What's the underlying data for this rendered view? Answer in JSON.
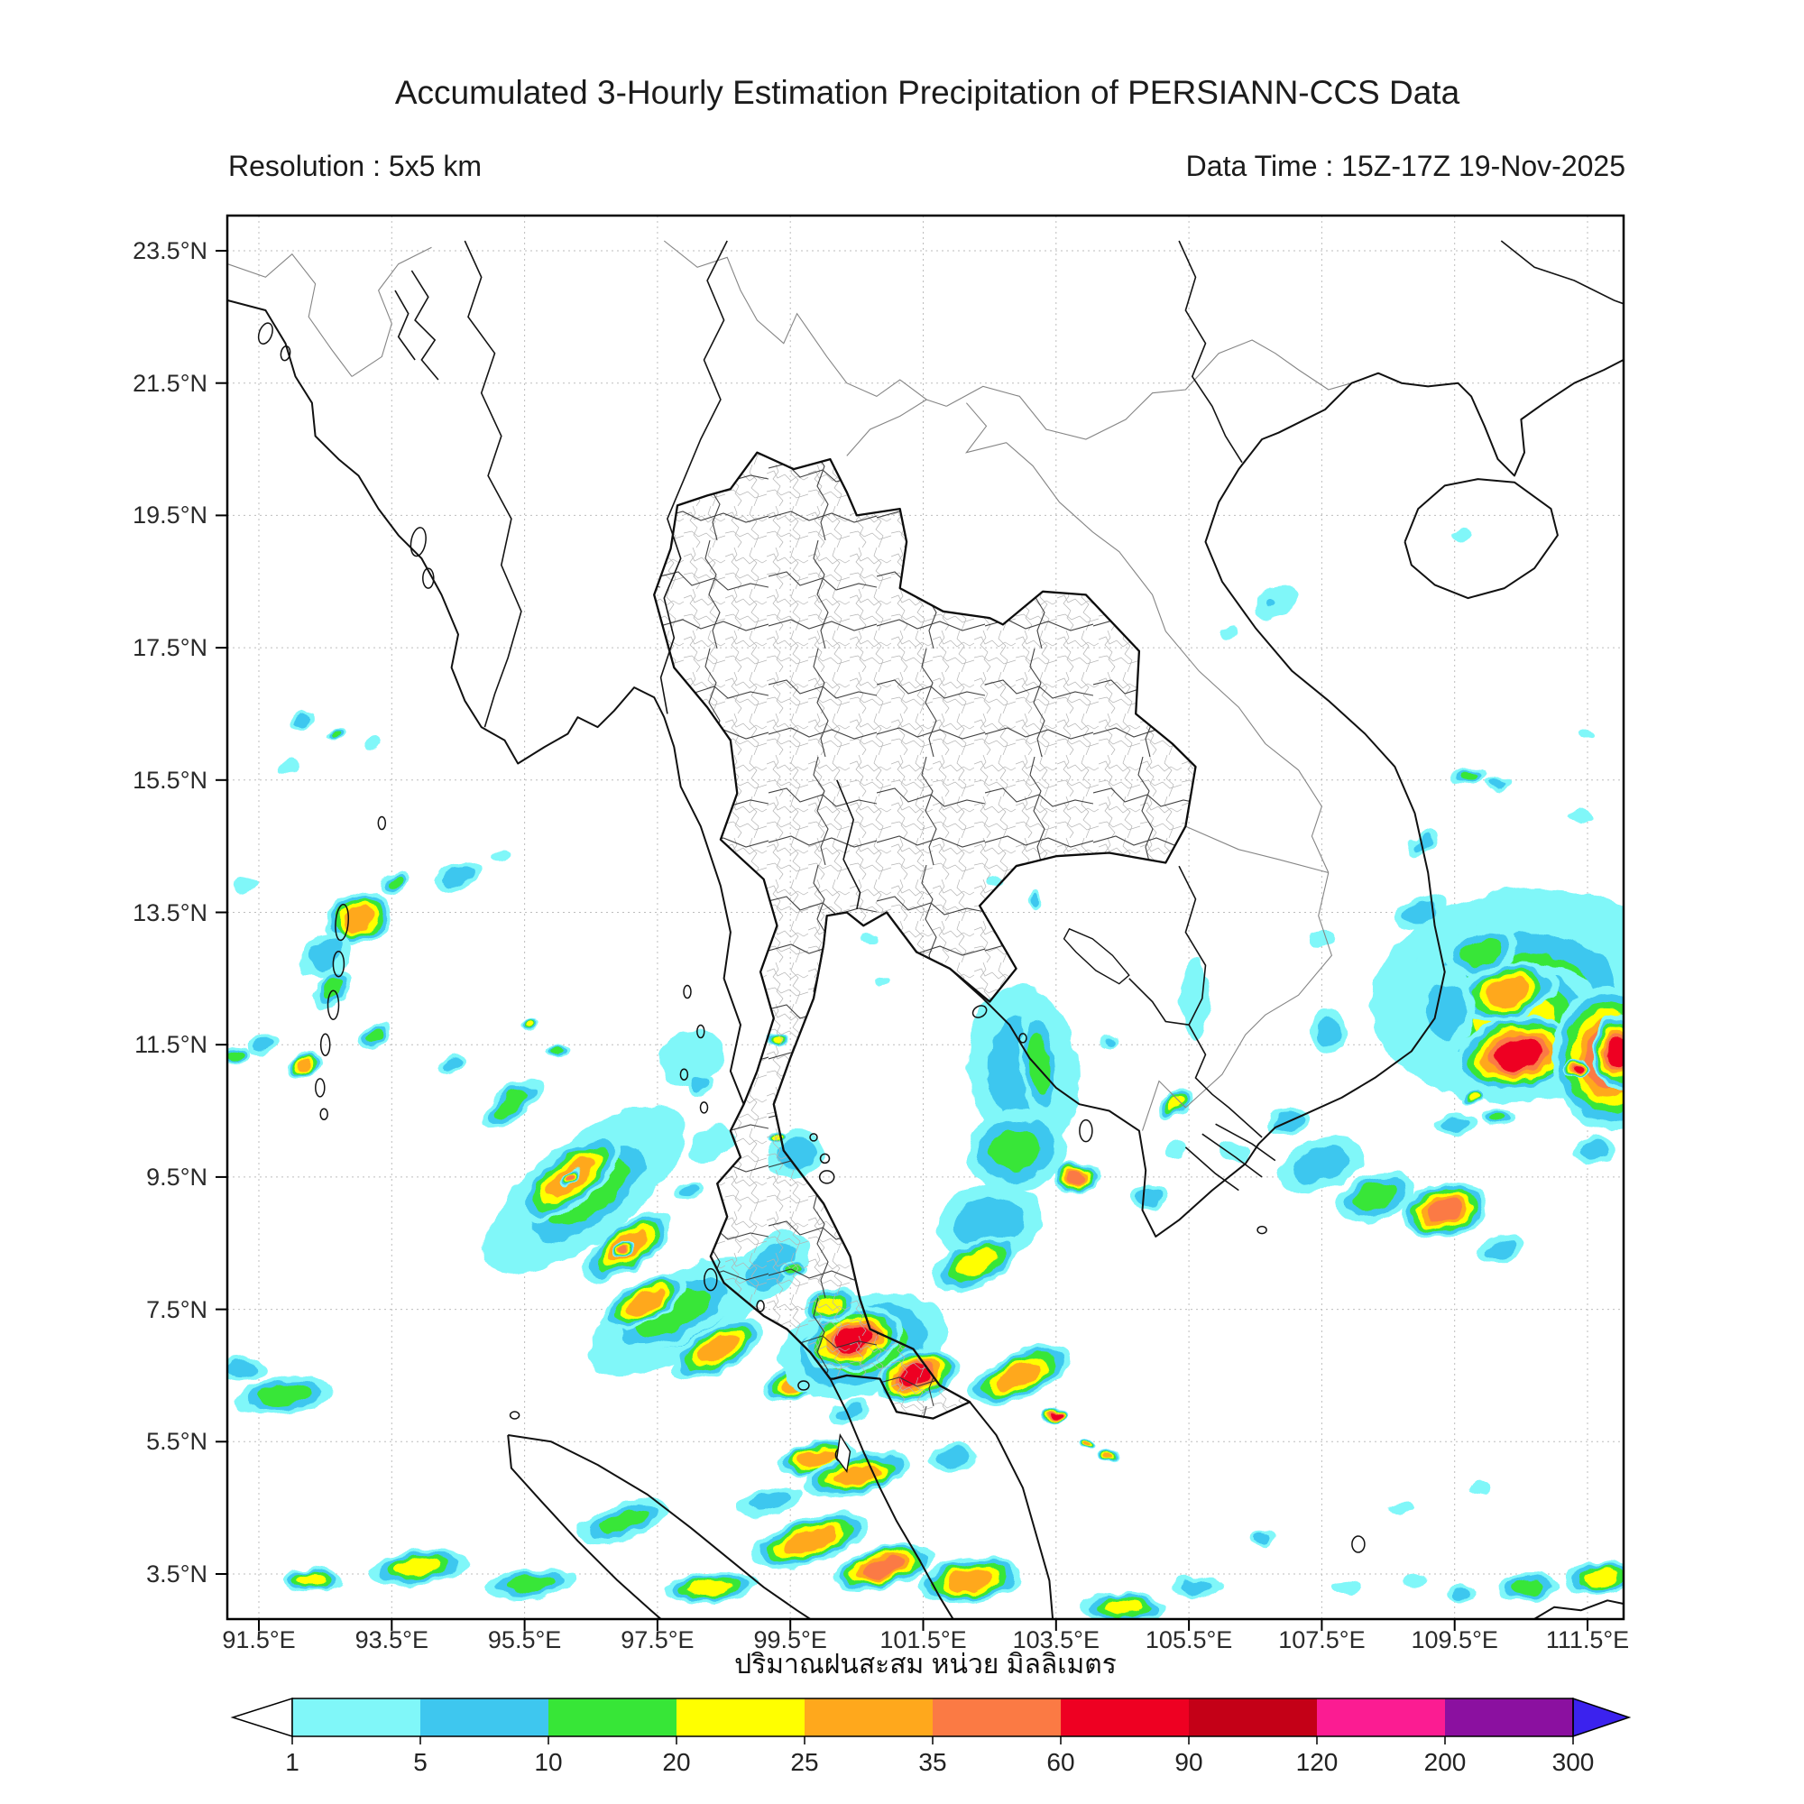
{
  "header": {
    "title": "Accumulated 3-Hourly Estimation Precipitation of PERSIANN-CCS Data",
    "resolution_label": "Resolution : 5x5 km",
    "data_time_label": "Data Time : 15Z-17Z 19-Nov-2025"
  },
  "caption_thai": "ปริมาณฝนสะสม หน่วย มิลลิเมตร",
  "axes": {
    "x_labels": [
      "91.5°E",
      "93.5°E",
      "95.5°E",
      "97.5°E",
      "99.5°E",
      "101.5°E",
      "103.5°E",
      "105.5°E",
      "107.5°E",
      "109.5°E",
      "111.5°E"
    ],
    "y_labels": [
      "23.5°N",
      "21.5°N",
      "19.5°N",
      "17.5°N",
      "15.5°N",
      "13.5°N",
      "11.5°N",
      "9.5°N",
      "7.5°N",
      "5.5°N",
      "3.5°N"
    ]
  },
  "colorbar": {
    "tick_values": [
      "1",
      "5",
      "10",
      "20",
      "25",
      "35",
      "60",
      "90",
      "120",
      "200",
      "300"
    ],
    "segment_colors": [
      "#80F7F9",
      "#3EC7EF",
      "#37E637",
      "#FFFF00",
      "#FFA81C",
      "#FB7A44",
      "#EE0022",
      "#C40017",
      "#FB1C92",
      "#8B10A0"
    ],
    "underflow_color": "#FFFFFF",
    "overflow_color": "#3B22EE"
  },
  "chart_data": {
    "type": "heatmap",
    "title": "Accumulated 3-Hourly Estimation Precipitation of PERSIANN-CCS Data",
    "units": "mm",
    "resolution": "5x5 km",
    "data_time": "15Z-17Z 19-Nov-2025",
    "lon_range": [
      91.03,
      112.04
    ],
    "lat_range": [
      2.82,
      24.03
    ],
    "x_tick_lons": [
      91.5,
      93.5,
      95.5,
      97.5,
      99.5,
      101.5,
      103.5,
      105.5,
      107.5,
      109.5,
      111.5
    ],
    "y_tick_lats": [
      23.5,
      21.5,
      19.5,
      17.5,
      15.5,
      13.5,
      11.5,
      9.5,
      7.5,
      5.5,
      3.5
    ],
    "precip_levels_mm": [
      1,
      5,
      10,
      20,
      25,
      35,
      60,
      90,
      120,
      200,
      300
    ],
    "level_colors": [
      "#80F7F9",
      "#3EC7EF",
      "#37E637",
      "#FFFF00",
      "#FFA81C",
      "#FB7A44",
      "#EE0022"
    ],
    "blobs": [
      [
        92.15,
        16.4,
        14,
        9,
        -20,
        2
      ],
      [
        92.65,
        16.2,
        10,
        7,
        -20,
        3
      ],
      [
        93.25,
        16.05,
        9,
        6,
        0,
        1
      ],
      [
        91.95,
        15.7,
        13,
        8,
        -10,
        1
      ],
      [
        91.3,
        13.9,
        13,
        8,
        0,
        1
      ],
      [
        94.5,
        14.05,
        28,
        14,
        -25,
        2
      ],
      [
        95.15,
        14.35,
        12,
        8,
        -20,
        1
      ],
      [
        93.55,
        13.95,
        17,
        11,
        -30,
        3
      ],
      [
        93.0,
        13.4,
        38,
        28,
        -25,
        5
      ],
      [
        92.5,
        12.85,
        30,
        22,
        -30,
        2
      ],
      [
        92.6,
        12.35,
        26,
        17,
        -40,
        3
      ],
      [
        93.25,
        11.65,
        20,
        13,
        -35,
        3
      ],
      [
        92.2,
        11.2,
        22,
        13,
        -30,
        5
      ],
      [
        91.6,
        11.5,
        18,
        12,
        -20,
        2
      ],
      [
        91.15,
        11.35,
        18,
        11,
        0,
        3
      ],
      [
        94.4,
        11.2,
        15,
        9,
        -30,
        2
      ],
      [
        95.6,
        11.8,
        10,
        6,
        0,
        4
      ],
      [
        96.0,
        11.4,
        12,
        7,
        0,
        3
      ],
      [
        96.4,
        9.3,
        135,
        55,
        -38,
        2
      ],
      [
        96.45,
        9.25,
        100,
        42,
        -38,
        3
      ],
      [
        96.2,
        9.5,
        70,
        30,
        -38,
        5
      ],
      [
        96.2,
        9.5,
        16,
        8,
        -38,
        6
      ],
      [
        97.05,
        8.45,
        58,
        25,
        -35,
        5
      ],
      [
        97.0,
        8.4,
        13,
        7,
        -35,
        6
      ],
      [
        95.3,
        10.6,
        40,
        18,
        -38,
        3
      ],
      [
        98.0,
        11.3,
        36,
        30,
        -20,
        1
      ],
      [
        98.15,
        10.9,
        15,
        12,
        0,
        2
      ],
      [
        98.3,
        10.0,
        28,
        18,
        -30,
        1
      ],
      [
        98.0,
        9.3,
        15,
        9,
        -20,
        2
      ],
      [
        97.8,
        7.4,
        110,
        46,
        -28,
        2
      ],
      [
        97.75,
        7.45,
        85,
        34,
        -28,
        3
      ],
      [
        97.3,
        7.6,
        52,
        22,
        -28,
        5
      ],
      [
        98.4,
        6.9,
        56,
        24,
        -28,
        5
      ],
      [
        99.6,
        6.4,
        40,
        18,
        -20,
        5
      ],
      [
        91.9,
        6.2,
        55,
        20,
        -8,
        3
      ],
      [
        91.25,
        6.6,
        28,
        13,
        0,
        2
      ],
      [
        100.6,
        6.95,
        95,
        55,
        -15,
        3
      ],
      [
        100.45,
        7.05,
        55,
        34,
        -15,
        7
      ],
      [
        101.4,
        6.5,
        46,
        28,
        -20,
        7
      ],
      [
        100.1,
        7.55,
        32,
        18,
        -10,
        4
      ],
      [
        99.2,
        8.15,
        50,
        30,
        -40,
        2
      ],
      [
        99.55,
        8.1,
        14,
        9,
        0,
        3
      ],
      [
        99.6,
        9.85,
        32,
        26,
        -10,
        2
      ],
      [
        99.3,
        10.1,
        10,
        6,
        0,
        4
      ],
      [
        99.3,
        11.6,
        12,
        6,
        0,
        4
      ],
      [
        102.95,
        6.5,
        60,
        25,
        -22,
        5
      ],
      [
        103.5,
        5.9,
        14,
        8,
        -20,
        7
      ],
      [
        103.95,
        5.45,
        10,
        6,
        0,
        5
      ],
      [
        104.3,
        5.3,
        12,
        6,
        0,
        5
      ],
      [
        101.95,
        5.25,
        28,
        13,
        -10,
        2
      ],
      [
        100.4,
        5.95,
        24,
        13,
        -15,
        2
      ],
      [
        99.9,
        5.25,
        45,
        18,
        -10,
        5
      ],
      [
        100.5,
        5.0,
        60,
        22,
        -12,
        5
      ],
      [
        99.2,
        4.6,
        38,
        15,
        -15,
        2
      ],
      [
        93.9,
        3.6,
        55,
        19,
        -8,
        4
      ],
      [
        92.3,
        3.4,
        34,
        13,
        0,
        4
      ],
      [
        95.6,
        3.35,
        50,
        17,
        -5,
        3
      ],
      [
        97.0,
        4.3,
        52,
        20,
        -20,
        3
      ],
      [
        98.3,
        3.3,
        52,
        17,
        -5,
        4
      ],
      [
        99.8,
        4.0,
        68,
        25,
        -18,
        5
      ],
      [
        100.9,
        3.6,
        58,
        23,
        -15,
        6
      ],
      [
        102.2,
        3.4,
        58,
        25,
        -8,
        5
      ],
      [
        104.5,
        3.0,
        45,
        17,
        0,
        4
      ],
      [
        105.6,
        3.3,
        28,
        13,
        0,
        2
      ],
      [
        106.6,
        4.05,
        13,
        9,
        0,
        2
      ],
      [
        103.0,
        11.1,
        60,
        95,
        -5,
        2
      ],
      [
        103.25,
        11.2,
        22,
        65,
        -5,
        3
      ],
      [
        102.9,
        9.9,
        55,
        45,
        -10,
        3
      ],
      [
        102.5,
        8.8,
        58,
        45,
        -15,
        2
      ],
      [
        102.3,
        8.2,
        52,
        24,
        -25,
        4
      ],
      [
        103.8,
        9.5,
        25,
        18,
        0,
        6
      ],
      [
        104.9,
        9.2,
        20,
        13,
        0,
        2
      ],
      [
        105.3,
        9.9,
        13,
        9,
        0,
        1
      ],
      [
        100.7,
        13.1,
        8,
        6,
        0,
        1
      ],
      [
        100.9,
        12.45,
        8,
        6,
        0,
        1
      ],
      [
        103.2,
        13.7,
        8,
        10,
        0,
        2
      ],
      [
        102.55,
        13.95,
        10,
        7,
        0,
        1
      ],
      [
        104.3,
        11.55,
        8,
        6,
        0,
        2
      ],
      [
        105.6,
        12.2,
        15,
        45,
        0,
        1
      ],
      [
        105.3,
        10.6,
        22,
        14,
        -30,
        4
      ],
      [
        107.6,
        11.7,
        20,
        25,
        0,
        2
      ],
      [
        107.5,
        13.1,
        14,
        9,
        0,
        1
      ],
      [
        107.5,
        9.7,
        48,
        28,
        -20,
        2
      ],
      [
        108.3,
        9.2,
        44,
        26,
        -15,
        3
      ],
      [
        109.35,
        9.0,
        48,
        30,
        -10,
        6
      ],
      [
        110.2,
        8.4,
        28,
        16,
        -10,
        2
      ],
      [
        107.0,
        10.35,
        24,
        14,
        -15,
        2
      ],
      [
        106.2,
        9.9,
        18,
        11,
        0,
        1
      ],
      [
        111.6,
        9.9,
        26,
        15,
        0,
        2
      ],
      [
        107.9,
        3.3,
        15,
        8,
        0,
        1
      ],
      [
        108.9,
        3.4,
        14,
        8,
        0,
        1
      ],
      [
        109.6,
        3.2,
        17,
        9,
        0,
        2
      ],
      [
        110.6,
        3.3,
        34,
        16,
        -5,
        3
      ],
      [
        111.7,
        3.45,
        40,
        18,
        -5,
        4
      ],
      [
        108.7,
        4.5,
        12,
        7,
        0,
        1
      ],
      [
        109.9,
        4.8,
        12,
        7,
        0,
        1
      ],
      [
        110.55,
        12.25,
        170,
        118,
        -8,
        1
      ],
      [
        110.5,
        12.2,
        140,
        92,
        -8,
        3
      ],
      [
        110.4,
        11.9,
        95,
        60,
        -10,
        4
      ],
      [
        110.45,
        11.35,
        68,
        42,
        -10,
        7
      ],
      [
        110.3,
        12.3,
        55,
        32,
        -15,
        5
      ],
      [
        111.8,
        11.3,
        62,
        80,
        0,
        6
      ],
      [
        111.95,
        11.4,
        26,
        42,
        0,
        7
      ],
      [
        111.35,
        11.15,
        15,
        10,
        0,
        7
      ],
      [
        109.9,
        12.9,
        42,
        26,
        -20,
        3
      ],
      [
        109.35,
        12.0,
        33,
        48,
        0,
        2
      ],
      [
        109.0,
        13.5,
        30,
        17,
        -20,
        2
      ],
      [
        109.8,
        10.7,
        12,
        8,
        0,
        4
      ],
      [
        110.15,
        10.4,
        18,
        10,
        0,
        3
      ],
      [
        109.5,
        10.3,
        24,
        12,
        0,
        2
      ],
      [
        109.7,
        15.55,
        20,
        11,
        -10,
        3
      ],
      [
        110.15,
        15.45,
        14,
        8,
        0,
        2
      ],
      [
        109.0,
        14.55,
        20,
        11,
        -40,
        2
      ],
      [
        111.4,
        14.95,
        14,
        8,
        0,
        1
      ],
      [
        111.5,
        16.2,
        8,
        5,
        0,
        1
      ],
      [
        106.8,
        18.2,
        28,
        16,
        -25,
        1
      ],
      [
        106.7,
        18.15,
        10,
        7,
        0,
        2
      ],
      [
        106.1,
        17.7,
        9,
        6,
        0,
        1
      ],
      [
        109.6,
        19.2,
        11,
        7,
        0,
        1
      ]
    ]
  }
}
